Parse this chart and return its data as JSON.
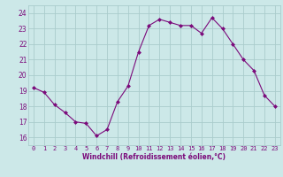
{
  "x": [
    0,
    1,
    2,
    3,
    4,
    5,
    6,
    7,
    8,
    9,
    10,
    11,
    12,
    13,
    14,
    15,
    16,
    17,
    18,
    19,
    20,
    21,
    22,
    23
  ],
  "y": [
    19.2,
    18.9,
    18.1,
    17.6,
    17.0,
    16.9,
    16.1,
    16.5,
    18.3,
    19.3,
    21.5,
    23.2,
    23.6,
    23.4,
    23.2,
    23.2,
    22.7,
    23.7,
    23.0,
    22.0,
    21.0,
    20.3,
    18.7,
    18.0
  ],
  "line_color": "#7b0a7b",
  "marker": "D",
  "marker_size": 2,
  "bg_color": "#cce8e8",
  "grid_color": "#aacccc",
  "xlabel": "Windchill (Refroidissement éolien,°C)",
  "xlabel_color": "#7b0a7b",
  "tick_color": "#7b0a7b",
  "ylim": [
    15.5,
    24.5
  ],
  "xlim": [
    -0.5,
    23.5
  ],
  "yticks": [
    16,
    17,
    18,
    19,
    20,
    21,
    22,
    23,
    24
  ],
  "xticks": [
    0,
    1,
    2,
    3,
    4,
    5,
    6,
    7,
    8,
    9,
    10,
    11,
    12,
    13,
    14,
    15,
    16,
    17,
    18,
    19,
    20,
    21,
    22,
    23
  ]
}
